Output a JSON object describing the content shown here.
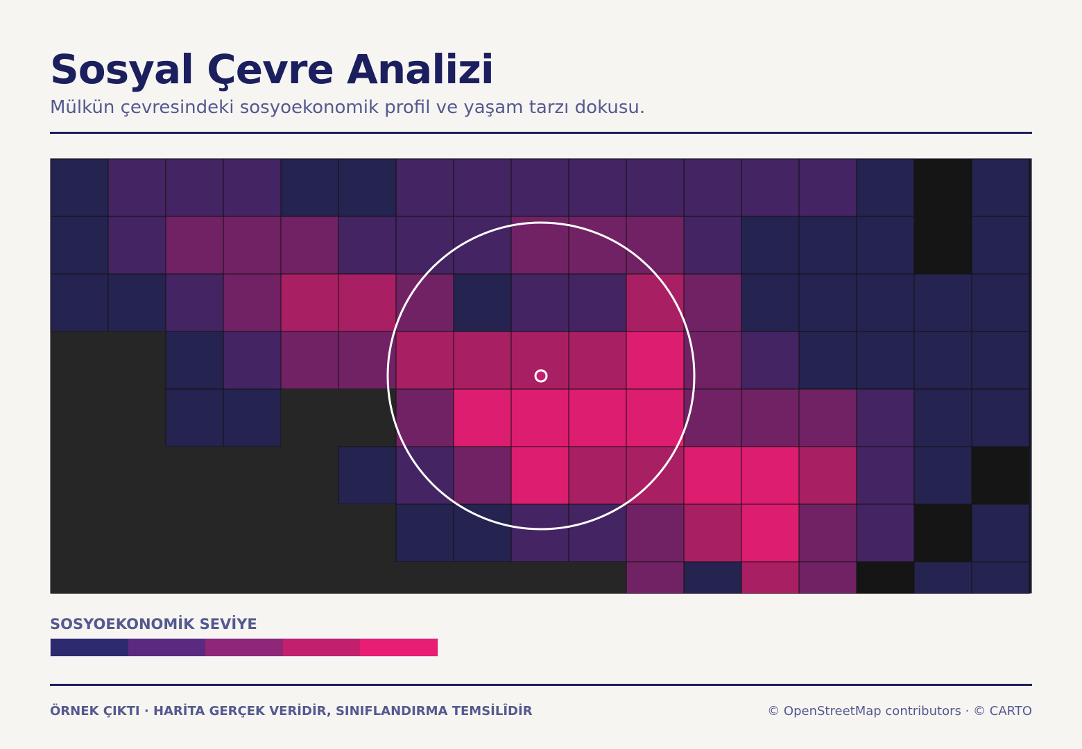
{
  "header": {
    "title": "Sosyal Çevre Analizi",
    "subtitle": "Mülkün çevresindeki sosyoekonomik profil ve yaşam tarzı dokusu."
  },
  "legend": {
    "title": "SOSYOEKONOMİK SEVİYE",
    "colors": [
      "#2d2a70",
      "#5b2a80",
      "#8f2677",
      "#c2206f",
      "#e81e74"
    ]
  },
  "footer": {
    "note": "ÖRNEK ÇIKTI · HARİTA GERÇEK VERİDİR, SINIFLANDIRMA TEMSİLÎDİR",
    "credit": "© OpenStreetMap contributors · © CARTO"
  }
}
